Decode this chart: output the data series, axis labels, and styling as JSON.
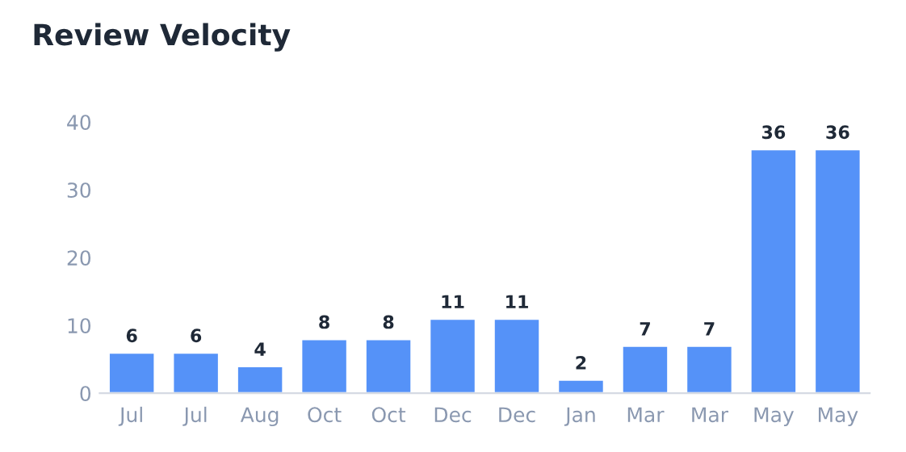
{
  "chart_data": {
    "type": "bar",
    "title": "Review Velocity",
    "categories": [
      "Jul",
      "Jul",
      "Aug",
      "Oct",
      "Oct",
      "Dec",
      "Dec",
      "Jan",
      "Mar",
      "Mar",
      "May",
      "May"
    ],
    "values": [
      6,
      6,
      4,
      8,
      8,
      11,
      11,
      2,
      7,
      7,
      36,
      36
    ],
    "color": "#5592f8",
    "ylim": [
      0,
      40
    ],
    "yticks": [
      0,
      10,
      20,
      30,
      40
    ],
    "grid": false,
    "data_labels": true
  }
}
